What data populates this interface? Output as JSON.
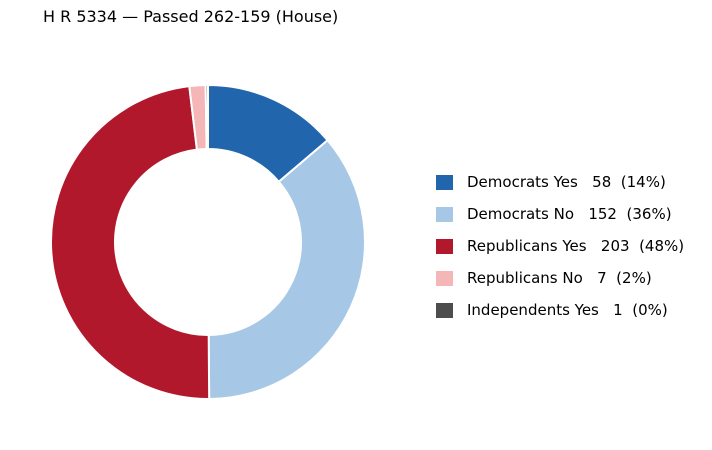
{
  "chart_data": {
    "type": "pie",
    "title": "H R 5334 — Passed 262-159 (House)",
    "legend_position": "right",
    "slices": [
      {
        "label": "Democrats Yes",
        "value": 58,
        "percent_label": "(14%)",
        "color": "#2166ac"
      },
      {
        "label": "Democrats No",
        "value": 152,
        "percent_label": "(36%)",
        "color": "#a6c8e6"
      },
      {
        "label": "Republicans Yes",
        "value": 203,
        "percent_label": "(48%)",
        "color": "#b2182b"
      },
      {
        "label": "Republicans No",
        "value": 7,
        "percent_label": "(2%)",
        "color": "#f4b6b6"
      },
      {
        "label": "Independents Yes",
        "value": 1,
        "percent_label": "(0%)",
        "color": "#4d4d4d"
      }
    ]
  }
}
